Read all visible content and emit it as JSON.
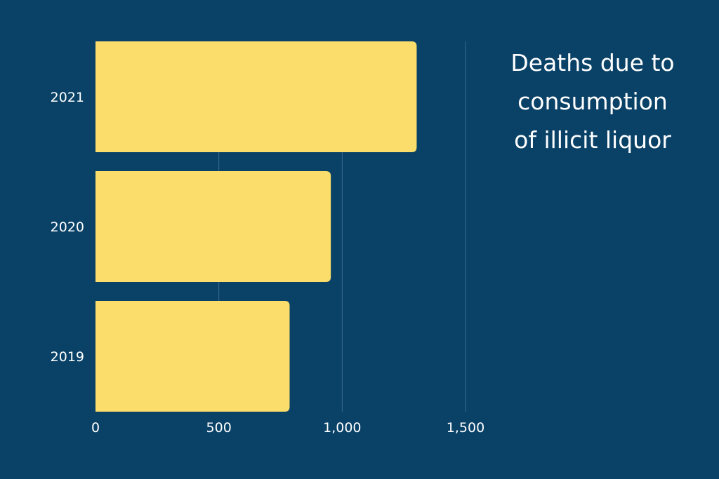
{
  "chart_data": {
    "type": "bar",
    "orientation": "horizontal",
    "title_lines": [
      "Deaths due to",
      "consumption",
      "of illicit liquor"
    ],
    "categories": [
      "2021",
      "2020",
      "2019"
    ],
    "values": [
      1302,
      954,
      787
    ],
    "xlim": [
      0,
      1500
    ],
    "x_ticks": [
      0,
      500,
      1000,
      1500
    ],
    "x_tick_labels": [
      "0",
      "500",
      "1,000",
      "1,500"
    ],
    "xlabel": "",
    "ylabel": "",
    "grid": "vertical",
    "legend": "none"
  },
  "colors": {
    "background": "#0a4267",
    "bar": "#fadd6a",
    "gridline": "#3b6a8c",
    "text": "#ffffff"
  }
}
